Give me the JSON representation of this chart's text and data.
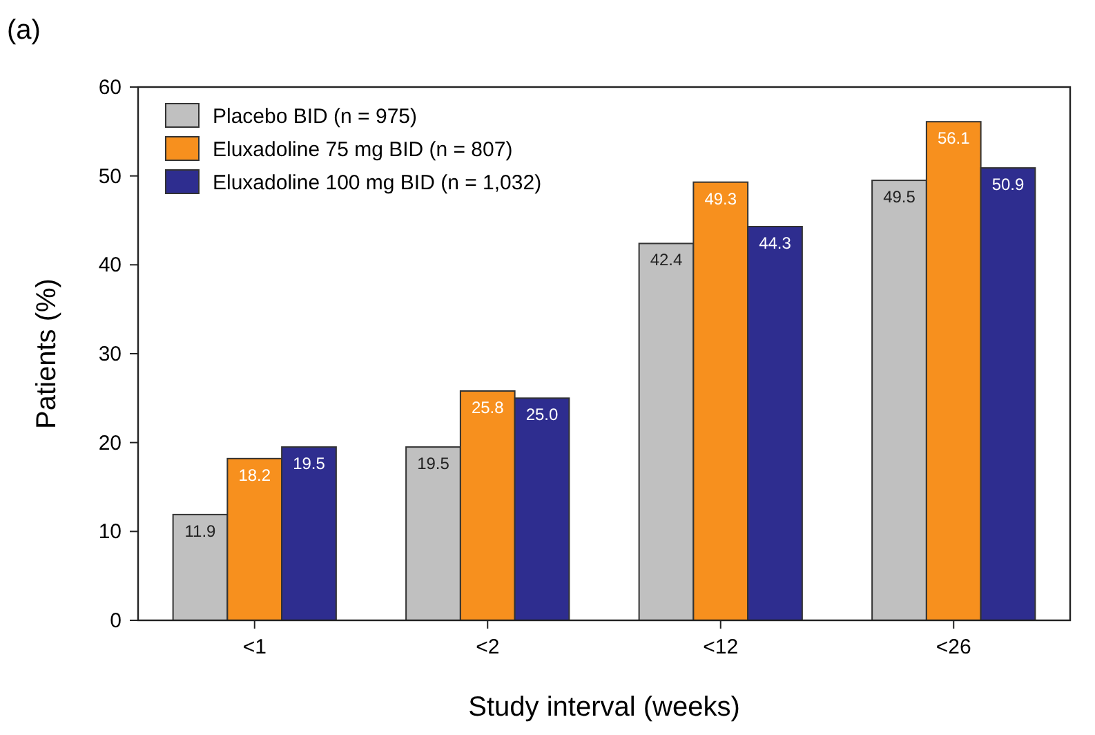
{
  "chart_data": {
    "type": "bar",
    "title": "(a)",
    "xlabel": "Study interval (weeks)",
    "ylabel": "Patients (%)",
    "categories": [
      "<1",
      "<2",
      "<12",
      "<26"
    ],
    "series": [
      {
        "name": "Placebo BID (n = 975)",
        "color": "#c0c0c0",
        "values": [
          11.9,
          19.5,
          42.4,
          49.5
        ],
        "value_labels": [
          "11.9",
          "19.5",
          "42.4",
          "49.5"
        ]
      },
      {
        "name": "Eluxadoline 75 mg BID (n = 807)",
        "color": "#f7901e",
        "values": [
          18.2,
          25.8,
          49.3,
          56.1
        ],
        "value_labels": [
          "18.2",
          "25.8",
          "49.3",
          "56.1"
        ]
      },
      {
        "name": "Eluxadoline 100 mg BID (n = 1,032)",
        "color": "#2e2d8f",
        "values": [
          19.5,
          25.0,
          44.3,
          50.9
        ],
        "value_labels": [
          "19.5",
          "25.0",
          "44.3",
          "50.9"
        ]
      }
    ],
    "ylim": [
      0,
      60
    ],
    "yticks": [
      0,
      10,
      20,
      30,
      40,
      50,
      60
    ],
    "grid": false,
    "legend": "top left"
  }
}
